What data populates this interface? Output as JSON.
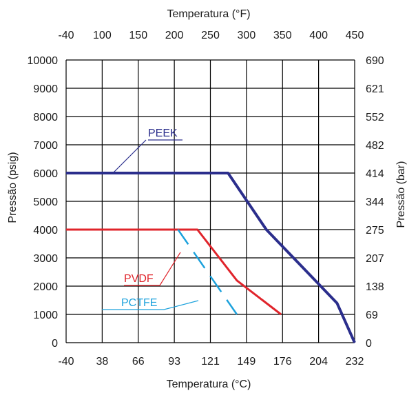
{
  "chart_data": {
    "type": "line",
    "xlabel_bottom": "Temperatura (°C)",
    "xlabel_top": "Temperatura (°F)",
    "ylabel_left": "Pressão (psig)",
    "ylabel_right": "Pressão (bar)",
    "x_ticks_bottom": [
      "-40",
      "38",
      "66",
      "93",
      "121",
      "149",
      "176",
      "204",
      "232"
    ],
    "x_ticks_top": [
      "-40",
      "100",
      "150",
      "200",
      "250",
      "300",
      "350",
      "400",
      "450"
    ],
    "y_ticks_left": [
      "0",
      "1000",
      "2000",
      "3000",
      "4000",
      "5000",
      "6000",
      "7000",
      "8000",
      "9000",
      "10000"
    ],
    "y_ticks_right": [
      "0",
      "69",
      "138",
      "207",
      "275",
      "344",
      "414",
      "482",
      "552",
      "621",
      "690"
    ],
    "xlim_F": [
      -40,
      450
    ],
    "ylim_psig": [
      0,
      10000
    ],
    "grid": true,
    "series": [
      {
        "name": "PEEK",
        "color": "#2b2e8c",
        "x_F": [
          -40,
          235,
          300,
          420,
          450
        ],
        "y_psig": [
          6000,
          6000,
          4000,
          1400,
          0
        ]
      },
      {
        "name": "PVDF",
        "color": "#e0242b",
        "x_F": [
          -40,
          183,
          250,
          325
        ],
        "y_psig": [
          4000,
          4000,
          2200,
          1000
        ]
      },
      {
        "name": "PCTFE",
        "color": "#1ba1dc",
        "x_F": [
          150,
          250
        ],
        "y_psig": [
          4000,
          1000
        ]
      }
    ]
  }
}
